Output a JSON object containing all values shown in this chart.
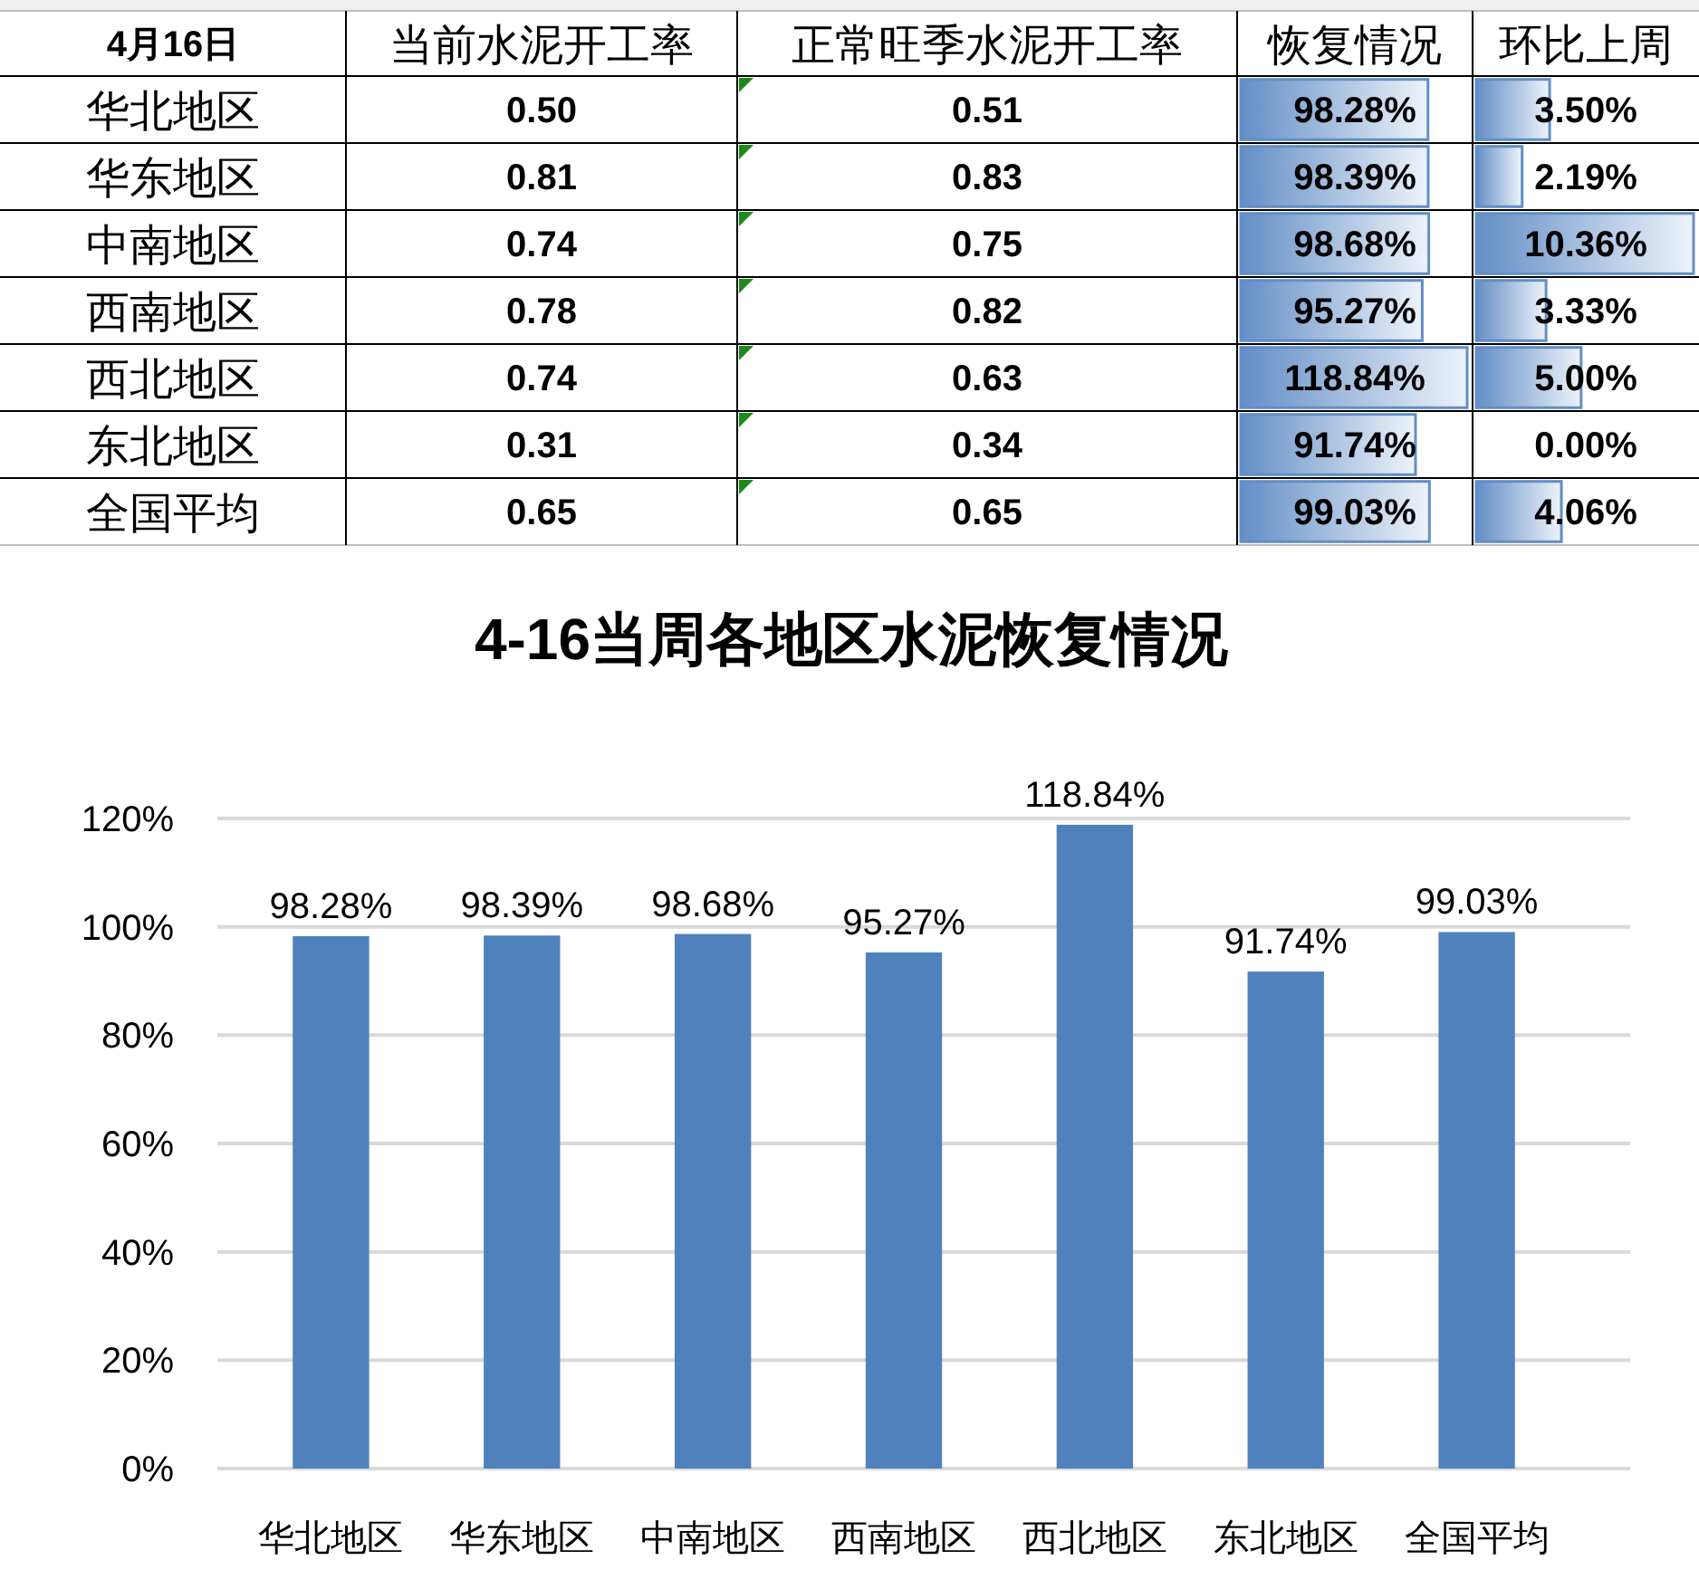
{
  "chart_data": [
    {
      "type": "heatmap",
      "ylabel": "4月16日",
      "categories": [
        "当前水泥开工率",
        "正常旺季水泥开工率"
      ],
      "y_categories": [
        "华北地区",
        "华东地区",
        "中南地区",
        "西南地区",
        "西北地区",
        "东北地区",
        "全国平均"
      ],
      "cells": [
        [
          0.5,
          0.51
        ],
        [
          0.81,
          0.83
        ],
        [
          0.74,
          0.75
        ],
        [
          0.78,
          0.82
        ],
        [
          0.74,
          0.63
        ],
        [
          0.31,
          0.34
        ],
        [
          0.65,
          0.65
        ]
      ],
      "cell_labels": [
        [
          "0.50",
          "0.51"
        ],
        [
          "0.81",
          "0.83"
        ],
        [
          "0.74",
          "0.75"
        ],
        [
          "0.78",
          "0.82"
        ],
        [
          "0.74",
          "0.63"
        ],
        [
          "0.31",
          "0.34"
        ],
        [
          "0.65",
          "0.65"
        ]
      ],
      "color": "#ffffff"
    },
    {
      "type": "bar",
      "orientation": "horizontal",
      "title": "恢复情况",
      "categories": [
        null,
        null,
        null,
        null,
        null,
        null,
        null
      ],
      "values": [
        98.28,
        98.39,
        98.68,
        95.27,
        118.84,
        91.74,
        99.03
      ],
      "value_labels": [
        "98.28%",
        "98.39%",
        "98.68%",
        "95.27%",
        "118.84%",
        "91.74%",
        "99.03%"
      ],
      "color": "#638ec6"
    },
    {
      "type": "bar",
      "orientation": "horizontal",
      "title": "环比上周",
      "categories": [
        null,
        null,
        null,
        null,
        null,
        null,
        null
      ],
      "values": [
        3.5,
        2.19,
        10.36,
        3.33,
        5.0,
        0.0,
        4.06
      ],
      "value_labels": [
        "3.50%",
        "2.19%",
        "10.36%",
        "3.33%",
        "5.00%",
        "0.00%",
        "4.06%"
      ],
      "color": "#638ec6"
    },
    {
      "type": "bar",
      "title": "4-16当周各地区水泥恢复情况",
      "categories": [
        "华北地区",
        "华东地区",
        "中南地区",
        "西南地区",
        "西北地区",
        "东北地区",
        "全国平均"
      ],
      "values": [
        98.28,
        98.39,
        98.68,
        95.27,
        118.84,
        91.74,
        99.03
      ],
      "color": "#4f81bd",
      "value_labels": [
        "98.28%",
        "98.39%",
        "98.68%",
        "95.27%",
        "118.84%",
        "91.74%",
        "99.03%"
      ],
      "ylim": [
        0,
        120
      ],
      "yticks": [
        {
          "value": 0,
          "label": "0%"
        },
        {
          "value": 20,
          "label": "20%"
        },
        {
          "value": 40,
          "label": "40%"
        },
        {
          "value": 60,
          "label": "60%"
        },
        {
          "value": 80,
          "label": "80%"
        },
        {
          "value": 100,
          "label": "100%"
        },
        {
          "value": 120,
          "label": "120%"
        }
      ],
      "grid": "y"
    }
  ]
}
